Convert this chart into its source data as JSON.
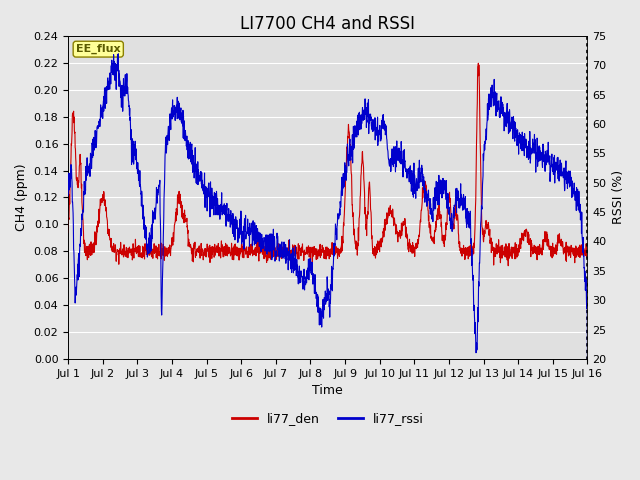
{
  "title": "LI7700 CH4 and RSSI",
  "xlabel": "Time",
  "ylabel_left": "CH4 (ppm)",
  "ylabel_right": "RSSI (%)",
  "annotation": "EE_flux",
  "legend_labels": [
    "li77_den",
    "li77_rssi"
  ],
  "legend_colors": [
    "#CC0000",
    "#0000CC"
  ],
  "left_ylim": [
    0.0,
    0.24
  ],
  "right_ylim": [
    20,
    75
  ],
  "left_yticks": [
    0.0,
    0.02,
    0.04,
    0.06,
    0.08,
    0.1,
    0.12,
    0.14,
    0.16,
    0.18,
    0.2,
    0.22,
    0.24
  ],
  "right_yticks": [
    20,
    25,
    30,
    35,
    40,
    45,
    50,
    55,
    60,
    65,
    70,
    75
  ],
  "xtick_labels": [
    "Jul 1",
    "Jul 2",
    "Jul 3",
    "Jul 4",
    "Jul 5",
    "Jul 6",
    "Jul 7",
    "Jul 8",
    "Jul 9",
    "Jul 10",
    "Jul 11",
    "Jul 12",
    "Jul 13",
    "Jul 14",
    "Jul 15",
    "Jul 16"
  ],
  "bg_color": "#E8E8E8",
  "plot_bg": "#E0E0E0",
  "grid_color": "#FFFFFF",
  "title_fontsize": 12,
  "axis_label_fontsize": 9,
  "tick_fontsize": 8,
  "linewidth": 0.8
}
